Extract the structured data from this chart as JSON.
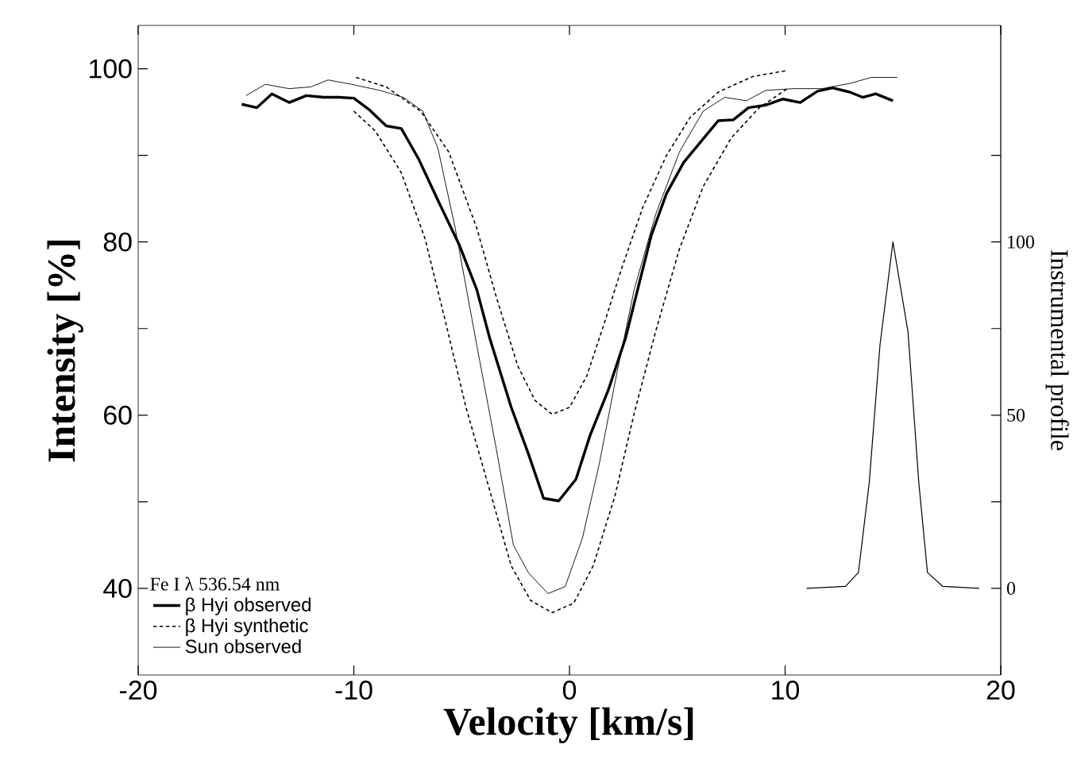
{
  "chart_data": {
    "type": "line",
    "xlabel": "Velocity [km/s]",
    "ylabel": "Intensity [%]",
    "y2label": "Instrumental profile",
    "legend_title": "Fe I  λ 536.54 nm",
    "legend": "bottom left",
    "grid": false,
    "marker": "none",
    "xlim": [
      -20,
      20
    ],
    "xticks": [
      -20,
      -10,
      0,
      10,
      20
    ],
    "ylim": [
      30,
      105
    ],
    "yticks": [
      40,
      {
        "value": 50,
        "label": null
      },
      60,
      {
        "value": 70,
        "label": null
      },
      80,
      {
        "value": 90,
        "label": null
      },
      100
    ],
    "y2lim": [
      -25,
      162.5
    ],
    "y2ticks": [
      0,
      {
        "value": 25,
        "label": null
      },
      50,
      {
        "value": 75,
        "label": null
      },
      100,
      {
        "value": 125,
        "label": null
      }
    ],
    "series": [
      {
        "name": "β Hyi observed",
        "color": "#000000",
        "line_style": "solid",
        "x": [
          -15.2,
          -14.5,
          -13.8,
          -13.0,
          -12.2,
          -11.4,
          -10.7,
          -10.0,
          -9.3,
          -8.5,
          -7.8,
          -7.0,
          -6.1,
          -5.1,
          -4.3,
          -3.7,
          -2.7,
          -1.9,
          -1.2,
          -0.5,
          0.3,
          0.96,
          1.8,
          2.6,
          3.2,
          3.8,
          4.5,
          5.3,
          6.1,
          6.9,
          7.6,
          8.3,
          9.1,
          9.9,
          10.7,
          11.5,
          12.2,
          13.0,
          13.6,
          14.2,
          15.0
        ],
        "values": [
          95.9,
          95.5,
          97.1,
          96.1,
          96.9,
          96.7,
          96.7,
          96.6,
          95.3,
          93.4,
          93.1,
          89.6,
          84.8,
          79.6,
          74.5,
          68.9,
          60.9,
          55.5,
          50.4,
          50.1,
          52.6,
          57.7,
          62.9,
          68.9,
          74.9,
          80.8,
          85.6,
          89.2,
          91.6,
          94.0,
          94.1,
          95.5,
          95.8,
          96.5,
          96.1,
          97.4,
          97.8,
          97.3,
          96.7,
          97.1,
          96.3
        ]
      },
      {
        "name": "β Hyi synthetic",
        "color": "#000000",
        "line_style": "dashed",
        "x": [
          -9.9,
          -8.5,
          -6.9,
          -5.6,
          -4.3,
          -3.4,
          -2.4,
          -1.6,
          -0.8,
          0,
          0.8,
          1.6,
          2.4,
          3.4,
          4.5,
          5.6,
          6.9,
          8.5,
          10.1
        ],
        "values": [
          99.0,
          97.9,
          95.1,
          90.4,
          81.6,
          73.7,
          65.7,
          61.7,
          60.1,
          60.9,
          64.5,
          70.5,
          76.8,
          84.0,
          90.0,
          94.4,
          97.3,
          99.1,
          99.8
        ]
      },
      {
        "color": "#000000",
        "line_style": "dashed",
        "x": [
          -10.0,
          -9.0,
          -7.8,
          -6.7,
          -5.8,
          -4.8,
          -3.8,
          -2.7,
          -1.8,
          -0.8,
          0.2,
          1.1,
          2.1,
          3.0,
          4.0,
          5.1,
          6.2,
          7.5,
          8.8,
          10.1
        ],
        "values": [
          95.1,
          92.8,
          88.0,
          80.4,
          71.3,
          60.9,
          52.2,
          42.6,
          38.6,
          37.2,
          38.3,
          42.6,
          50.6,
          60.2,
          69.7,
          79.2,
          86.4,
          92.0,
          95.5,
          97.7
        ]
      },
      {
        "name": "Sun observed",
        "color": "#000000",
        "line_style": "solid",
        "x": [
          -15.0,
          -14.1,
          -13.0,
          -12.0,
          -11.2,
          -10.1,
          -8.8,
          -7.7,
          -6.8,
          -6.1,
          -5.3,
          -4.3,
          -3.4,
          -2.6,
          -1.9,
          -1.0,
          -0.2,
          0.6,
          1.4,
          2.2,
          3.0,
          4.0,
          5.1,
          6.2,
          7.2,
          8.2,
          9.1,
          10.4,
          11.7,
          13.0,
          14.0,
          15.2
        ],
        "values": [
          96.9,
          98.2,
          97.7,
          97.9,
          98.7,
          98.2,
          97.5,
          96.7,
          95.1,
          90.8,
          81.6,
          68.1,
          56.2,
          45.0,
          41.8,
          39.4,
          40.2,
          45.8,
          54.6,
          64.9,
          74.5,
          83.2,
          90.4,
          95.1,
          96.7,
          96.3,
          97.5,
          97.7,
          97.7,
          98.3,
          99.0,
          99.0
        ]
      },
      {
        "color": "#000000",
        "line_style": "solid",
        "axis": "y2",
        "x": [
          11.0,
          12.8,
          13.4,
          13.9,
          14.4,
          15.0,
          15.7,
          16.2,
          16.6,
          17.3,
          19.0
        ],
        "values": [
          0,
          0.6,
          4.6,
          30.5,
          70.3,
          100,
          74,
          30.5,
          4.6,
          0.6,
          0
        ]
      }
    ]
  }
}
